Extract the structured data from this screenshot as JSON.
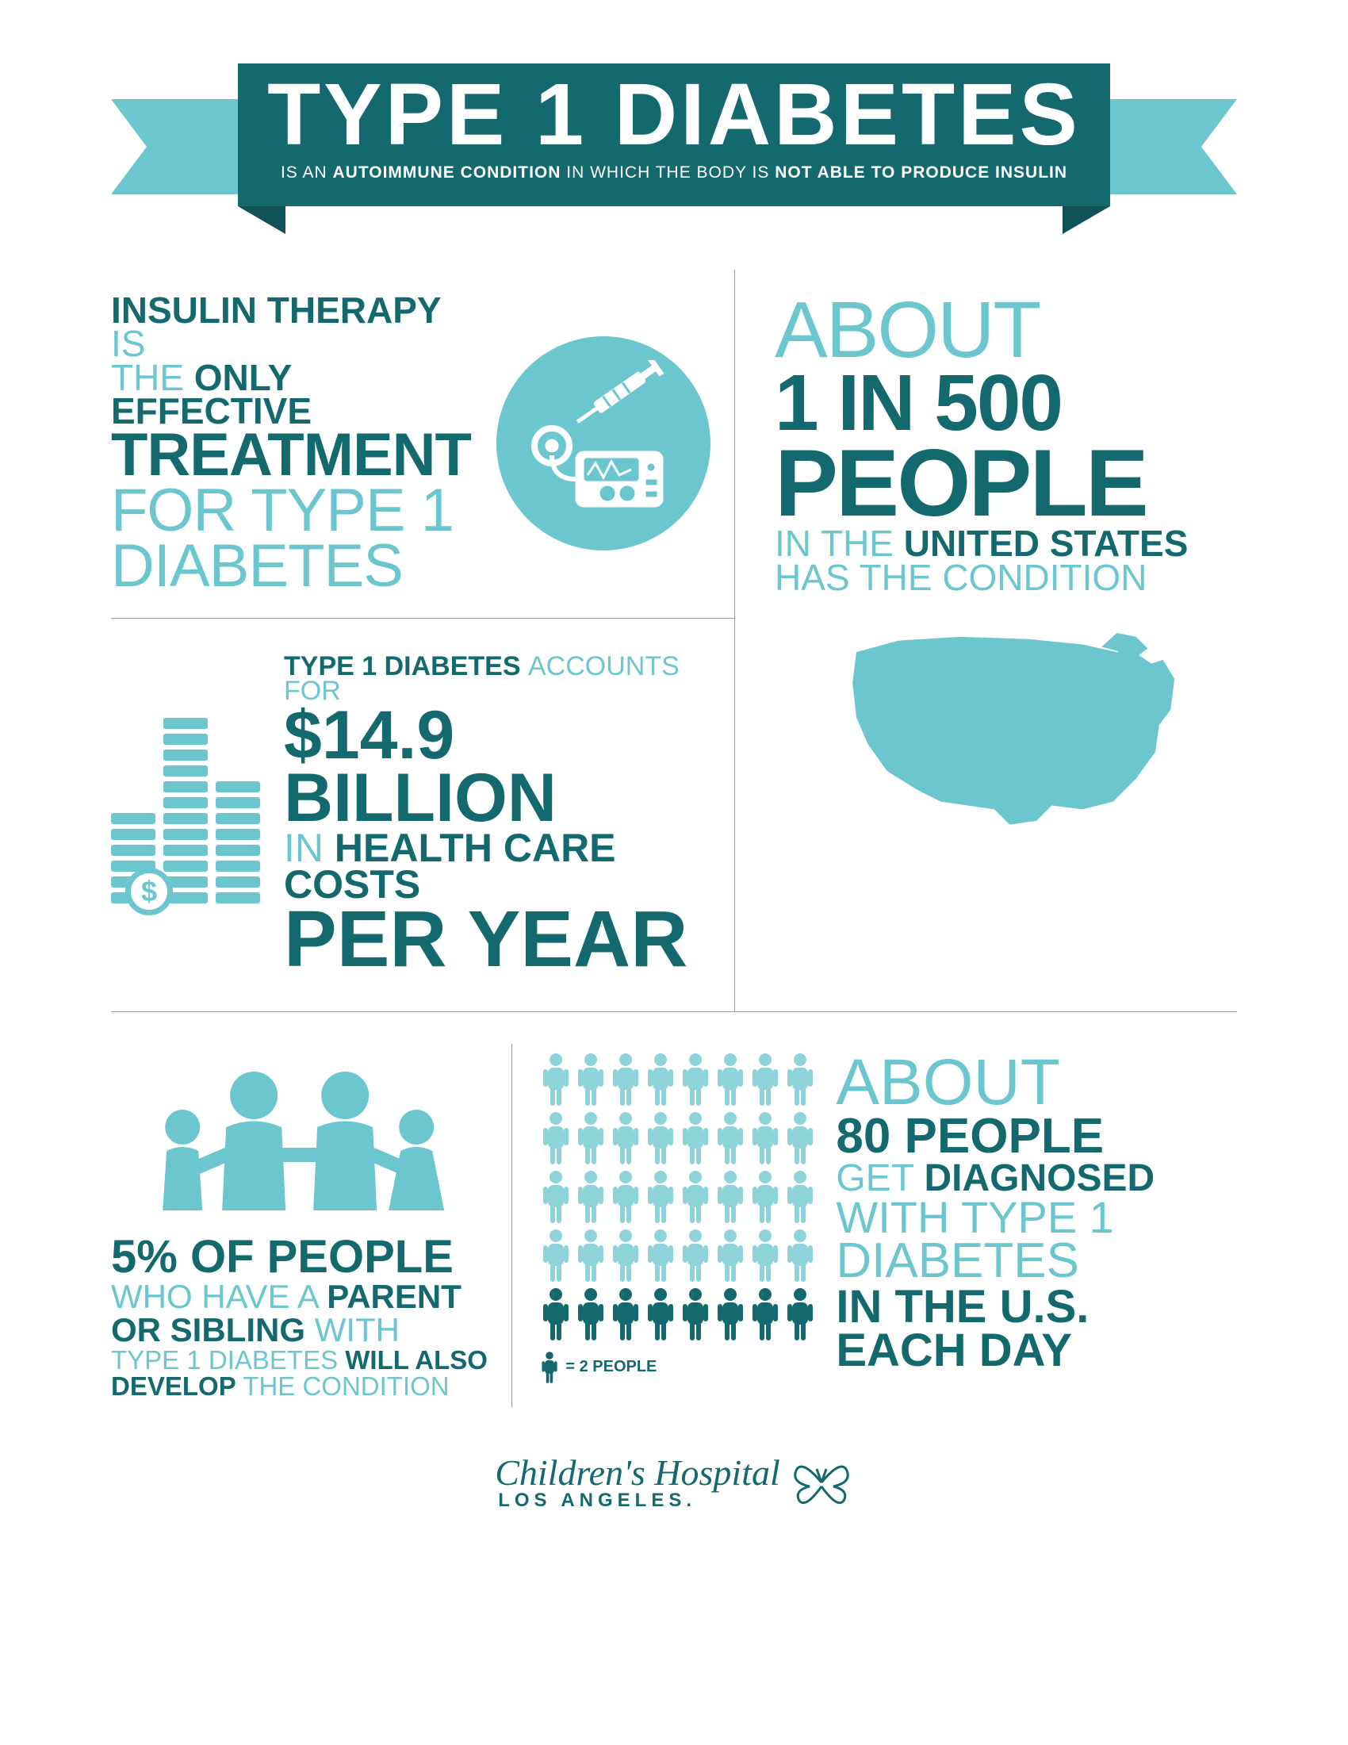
{
  "colors": {
    "dark_teal": "#14696f",
    "light_teal": "#6bc6cf",
    "pale_teal": "#8fd3da",
    "white": "#ffffff",
    "grey_line": "#9aa0a0",
    "fold": "#0f5258"
  },
  "banner": {
    "title": "TYPE 1 DIABETES",
    "sub_pre": "IS AN ",
    "sub_bold1": "AUTOIMMUNE CONDITION",
    "sub_mid": " IN WHICH THE BODY IS ",
    "sub_bold2": "NOT ABLE TO PRODUCE INSULIN"
  },
  "panelA": {
    "l1a": "INSULIN THERAPY ",
    "l1b": "IS",
    "l2a": "THE ",
    "l2b": "ONLY EFFECTIVE",
    "l3": "TREATMENT",
    "l4": "FOR TYPE 1",
    "l5": "DIABETES"
  },
  "panelB": {
    "l1": "ABOUT",
    "l2": "1 IN 500",
    "l3": "PEOPLE",
    "l4a": "IN THE ",
    "l4b": "UNITED STATES",
    "l5": "HAS THE CONDITION"
  },
  "panelC": {
    "l1a": "TYPE 1 DIABETES ",
    "l1b": "ACCOUNTS FOR",
    "l2": "$14.9 BILLION",
    "l3a": "IN ",
    "l3b": "HEALTH CARE COSTS",
    "l4": "PER YEAR",
    "stacks": [
      6,
      12,
      8
    ],
    "dollar": "$"
  },
  "panelD": {
    "l1": "5% OF PEOPLE",
    "l2a": "WHO HAVE A ",
    "l2b": "PARENT",
    "l3a": "OR SIBLING ",
    "l3b": "WITH",
    "l4a": "TYPE 1 DIABETES ",
    "l4b": "WILL ALSO",
    "l5a": "DEVELOP ",
    "l5b": "THE CONDITION"
  },
  "panelE": {
    "rows": 5,
    "cols": 8,
    "legend": "= 2 PEOPLE",
    "l1": "ABOUT",
    "l2": "80 PEOPLE",
    "l3a": "GET ",
    "l3b": "DIAGNOSED",
    "l4": "WITH TYPE 1",
    "l5": "DIABETES",
    "l6": "IN THE U.S.",
    "l7": "EACH DAY"
  },
  "footer": {
    "main": "Children's Hospital",
    "sub": "LOS ANGELES."
  },
  "typography": {
    "title_fontsize": 110,
    "xl": 100,
    "xxl": 120,
    "lg": 76,
    "md": 46,
    "sm": 40
  }
}
